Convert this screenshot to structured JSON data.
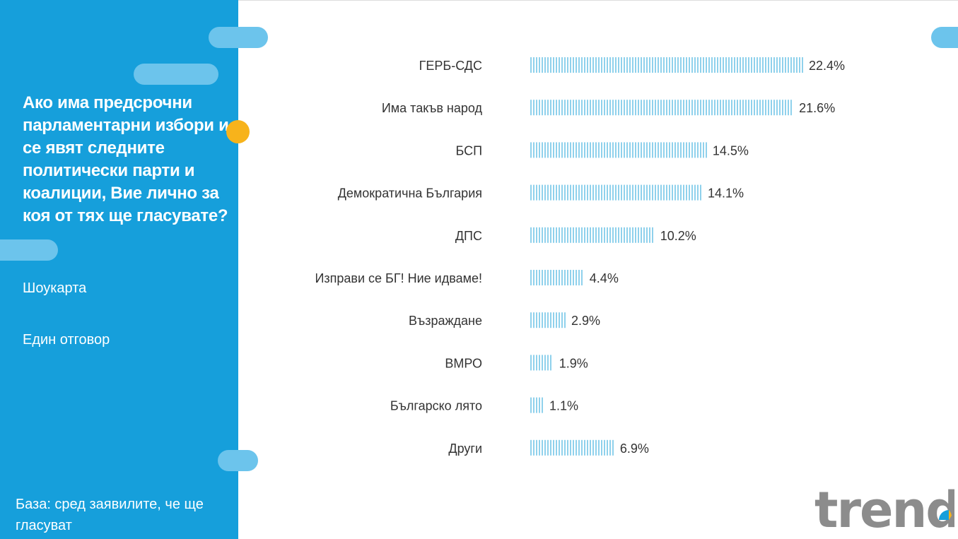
{
  "panel": {
    "question": "Ако има предсрочни парламентарни избори и се явят следните политически парти и коалиции, Вие лично за коя от тях ще гласувате?",
    "note_showcard": "Шоукарта",
    "note_answer": "Един отговор",
    "base": "База: сред заявилите, че ще гласуват"
  },
  "logo": {
    "text": "trend"
  },
  "colors": {
    "panel": "#169fdb",
    "accent_pill": "#6cc4ec",
    "dot": "#f7b31b",
    "bar": "#8fd1ec",
    "label_text": "#333333",
    "logo_gray": "#8c8c8c"
  },
  "chart_data": {
    "type": "bar",
    "orientation": "horizontal",
    "title": "",
    "xlabel": "",
    "ylabel": "",
    "xlim": [
      0,
      25
    ],
    "grid": false,
    "categories": [
      "ГЕРБ-СДС",
      "Има такъв народ",
      "БСП",
      "Демократична България",
      "ДПС",
      "Изправи се БГ! Ние идваме!",
      "Възраждане",
      "ВМРО",
      "Българско лято",
      "Други"
    ],
    "values": [
      22.4,
      21.6,
      14.5,
      14.1,
      10.2,
      4.4,
      2.9,
      1.9,
      1.1,
      6.9
    ],
    "data_labels": [
      "22.4%",
      "21.6%",
      "14.5%",
      "14.1%",
      "10.2%",
      "4.4%",
      "2.9%",
      "1.9%",
      "1.1%",
      "6.9%"
    ]
  }
}
